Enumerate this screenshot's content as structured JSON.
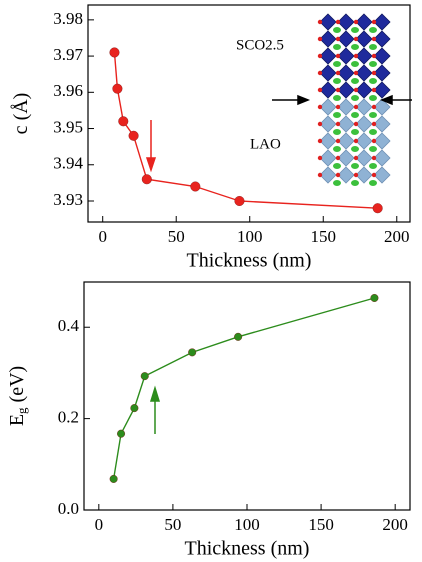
{
  "chart_data": [
    {
      "type": "line",
      "xlabel": "Thickness (nm)",
      "ylabel": [
        "c (Å)"
      ],
      "x": [
        8,
        10,
        14,
        21,
        30,
        63,
        93,
        187
      ],
      "series": [
        {
          "color": "#e8231e",
          "values": [
            3.971,
            3.961,
            3.952,
            3.948,
            3.936,
            3.934,
            3.93,
            3.928
          ]
        }
      ],
      "xlim": [
        -10,
        209
      ],
      "ylim": [
        3.9242,
        3.9841
      ],
      "xticks": [
        0,
        50,
        100,
        150,
        200
      ],
      "yticks": [
        3.93,
        3.94,
        3.95,
        3.96,
        3.97,
        3.98
      ],
      "annotations": [
        "SCO2.5",
        "LAO"
      ]
    },
    {
      "type": "line",
      "xlabel": "Thickness (nm)",
      "ylabel": [
        "E",
        "g",
        " (eV)"
      ],
      "x": [
        10,
        15,
        24,
        31,
        63,
        94,
        186
      ],
      "series": [
        {
          "color": "#2c8c1c",
          "values": [
            0.068,
            0.167,
            0.223,
            0.293,
            0.345,
            0.379,
            0.464
          ]
        }
      ],
      "xlim": [
        -10,
        210
      ],
      "ylim": [
        0,
        0.499
      ],
      "xticks": [
        0,
        50,
        100,
        150,
        200
      ],
      "yticks": [
        {
          "value": 0,
          "label": "0.0"
        },
        {
          "value": 0.2,
          "label": "0.2"
        },
        {
          "value": 0.4,
          "label": "0.4"
        }
      ]
    }
  ]
}
